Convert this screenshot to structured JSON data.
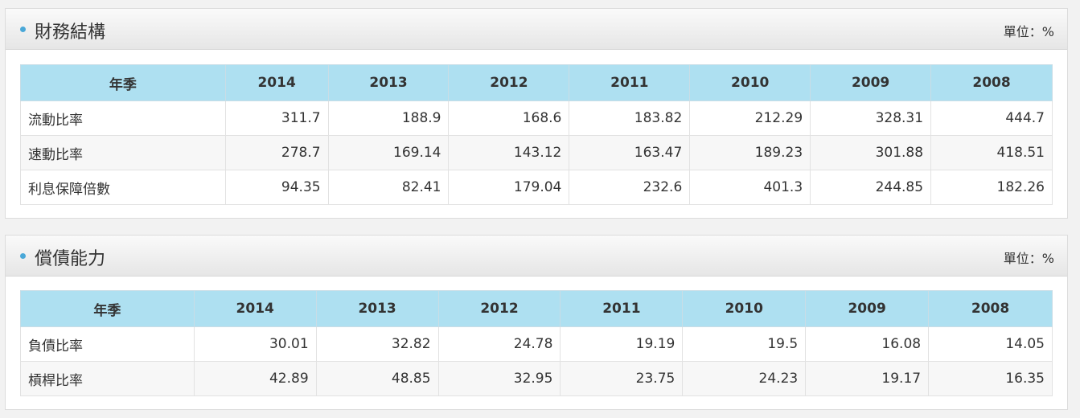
{
  "sections": [
    {
      "title": "財務結構",
      "unit": "單位：%",
      "table": {
        "header": [
          "年季",
          "2014",
          "2013",
          "2012",
          "2011",
          "2010",
          "2009",
          "2008"
        ],
        "rows": [
          [
            "流動比率",
            "311.7",
            "188.9",
            "168.6",
            "183.82",
            "212.29",
            "328.31",
            "444.7"
          ],
          [
            "速動比率",
            "278.7",
            "169.14",
            "143.12",
            "163.47",
            "189.23",
            "301.88",
            "418.51"
          ],
          [
            "利息保障倍數",
            "94.35",
            "82.41",
            "179.04",
            "232.6",
            "401.3",
            "244.85",
            "182.26"
          ]
        ]
      }
    },
    {
      "title": "償債能力",
      "unit": "單位：%",
      "table": {
        "header": [
          "年季",
          "2014",
          "2013",
          "2012",
          "2011",
          "2010",
          "2009",
          "2008"
        ],
        "rows": [
          [
            "負債比率",
            "30.01",
            "32.82",
            "24.78",
            "19.19",
            "19.5",
            "16.08",
            "14.05"
          ],
          [
            "槓桿比率",
            "42.89",
            "48.85",
            "32.95",
            "23.75",
            "24.23",
            "19.17",
            "16.35"
          ]
        ]
      }
    }
  ]
}
